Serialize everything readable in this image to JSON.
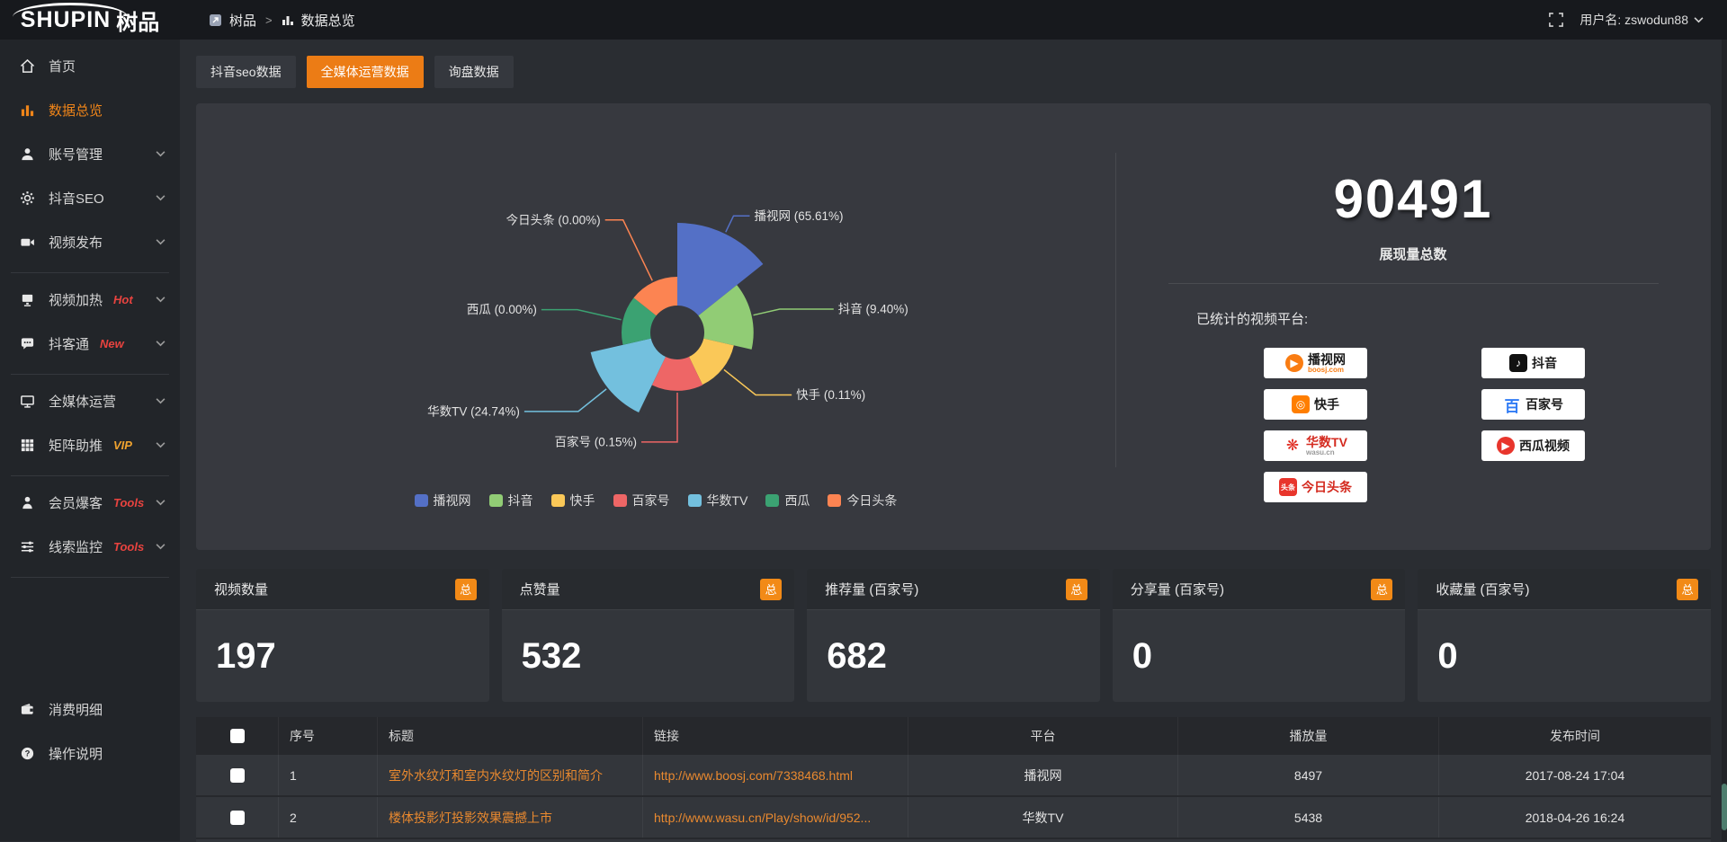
{
  "topbar": {
    "logo_en": "SHUPIN",
    "logo_cn": "树品",
    "breadcrumb": {
      "root": "树品",
      "separator": ">",
      "current": "数据总览"
    },
    "user_label": "用户名: zswodun88"
  },
  "sidebar": {
    "accent_color": "#f08519",
    "items": [
      {
        "label": "首页",
        "icon": "home-icon"
      },
      {
        "label": "数据总览",
        "icon": "bar-chart-icon",
        "active": true
      },
      {
        "label": "账号管理",
        "icon": "user-icon",
        "chevron": true
      },
      {
        "label": "抖音SEO",
        "icon": "gear-icon",
        "chevron": true
      },
      {
        "label": "视频发布",
        "icon": "video-icon",
        "chevron": true
      },
      {
        "divider": true
      },
      {
        "label": "视频加热",
        "icon": "heater-icon",
        "tag": "Hot",
        "tag_color": "#e8433f",
        "chevron": true
      },
      {
        "label": "抖客通",
        "icon": "chat-icon",
        "tag": "New",
        "tag_color": "#e8433f",
        "chevron": true
      },
      {
        "divider": true
      },
      {
        "label": "全媒体运营",
        "icon": "monitor-icon",
        "chevron": true
      },
      {
        "label": "矩阵助推",
        "icon": "grid-icon",
        "tag": "VIP",
        "tag_color": "#f0a32f",
        "chevron": true
      },
      {
        "divider": true
      },
      {
        "label": "会员爆客",
        "icon": "person-icon",
        "tag": "Tools",
        "tag_color": "#e8433f",
        "chevron": true
      },
      {
        "label": "线索监控",
        "icon": "sliders-icon",
        "tag": "Tools",
        "tag_color": "#e8433f",
        "chevron": true
      },
      {
        "divider": true
      },
      {
        "gap": true
      },
      {
        "label": "消费明细",
        "icon": "wallet-icon"
      },
      {
        "label": "操作说明",
        "icon": "help-icon"
      }
    ]
  },
  "tabs": [
    {
      "label": "抖音seo数据",
      "active": false
    },
    {
      "label": "全媒体运营数据",
      "active": true
    },
    {
      "label": "询盘数据",
      "active": false
    }
  ],
  "chart_data": {
    "type": "pie",
    "style": "nightingale-rose",
    "title": "",
    "label_format": "{name} ({value}%)",
    "legend_position": "bottom",
    "series": [
      {
        "name": "播视网",
        "value": 65.61,
        "color": "#5470c6"
      },
      {
        "name": "抖音",
        "value": 9.4,
        "color": "#91cc75"
      },
      {
        "name": "快手",
        "value": 0.11,
        "color": "#fac858"
      },
      {
        "name": "百家号",
        "value": 0.15,
        "color": "#ee6666"
      },
      {
        "name": "华数TV",
        "value": 24.74,
        "color": "#73c0de"
      },
      {
        "name": "西瓜",
        "value": 0.0,
        "color": "#3ba272"
      },
      {
        "name": "今日头条",
        "value": 0.0,
        "color": "#fc8452"
      }
    ]
  },
  "summary": {
    "total_value": "90491",
    "total_label": "展现量总数",
    "platforms_label": "已统计的视频平台:",
    "platforms": [
      {
        "name": "播视网",
        "sub": "boosj.com",
        "logo": "boosj-logo",
        "logo_color": "#f97c12",
        "logo_glyph": "▶",
        "logo_shape": "circle",
        "name_color": "#1a1a1a",
        "sub_color": "#f97c12"
      },
      {
        "name": "抖音",
        "logo": "douyin-logo",
        "logo_color": "#111111",
        "logo_glyph": "♪",
        "logo_shape": "square",
        "name_color": "#1a1a1a"
      },
      {
        "name": "快手",
        "logo": "kuaishou-logo",
        "logo_color": "#ff7e00",
        "logo_glyph": "◎",
        "logo_shape": "square",
        "name_color": "#1a1a1a"
      },
      {
        "name": "百家号",
        "logo": "baijiahao-logo",
        "logo_color": "#2f7bf5",
        "logo_glyph": "百",
        "logo_shape": "plain",
        "name_color": "#1a1a1a"
      },
      {
        "name": "华数TV",
        "sub": "wasu.cn",
        "logo": "wasu-logo",
        "logo_color": "#e02c21",
        "logo_glyph": "❋",
        "logo_shape": "plain",
        "name_color": "#d42a1f",
        "sub_color": "#999999"
      },
      {
        "name": "西瓜视频",
        "logo": "xigua-logo",
        "logo_color": "#e8352c",
        "logo_glyph": "▶",
        "logo_shape": "circle",
        "name_color": "#1a1a1a"
      },
      {
        "name": "今日头条",
        "logo": "toutiao-logo",
        "logo_color": "#e8352c",
        "logo_glyph": "头条",
        "logo_shape": "square",
        "name_color": "#d42a1f"
      }
    ]
  },
  "stat_cards": [
    {
      "title": "视频数量",
      "badge": "总",
      "value": "197"
    },
    {
      "title": "点赞量",
      "badge": "总",
      "value": "532"
    },
    {
      "title": "推荐量 (百家号)",
      "badge": "总",
      "value": "682"
    },
    {
      "title": "分享量 (百家号)",
      "badge": "总",
      "value": "0"
    },
    {
      "title": "收藏量 (百家号)",
      "badge": "总",
      "value": "0"
    }
  ],
  "table": {
    "columns": [
      "序号",
      "标题",
      "链接",
      "平台",
      "播放量",
      "发布时间"
    ],
    "rows": [
      {
        "no": "1",
        "title": "室外水纹灯和室内水纹灯的区别和简介",
        "link": "http://www.boosj.com/7338468.html",
        "platform": "播视网",
        "plays": "8497",
        "time": "2017-08-24 17:04"
      },
      {
        "no": "2",
        "title": "楼体投影灯投影效果震撼上市",
        "link": "http://www.wasu.cn/Play/show/id/952...",
        "platform": "华数TV",
        "plays": "5438",
        "time": "2018-04-26 16:24"
      }
    ]
  }
}
